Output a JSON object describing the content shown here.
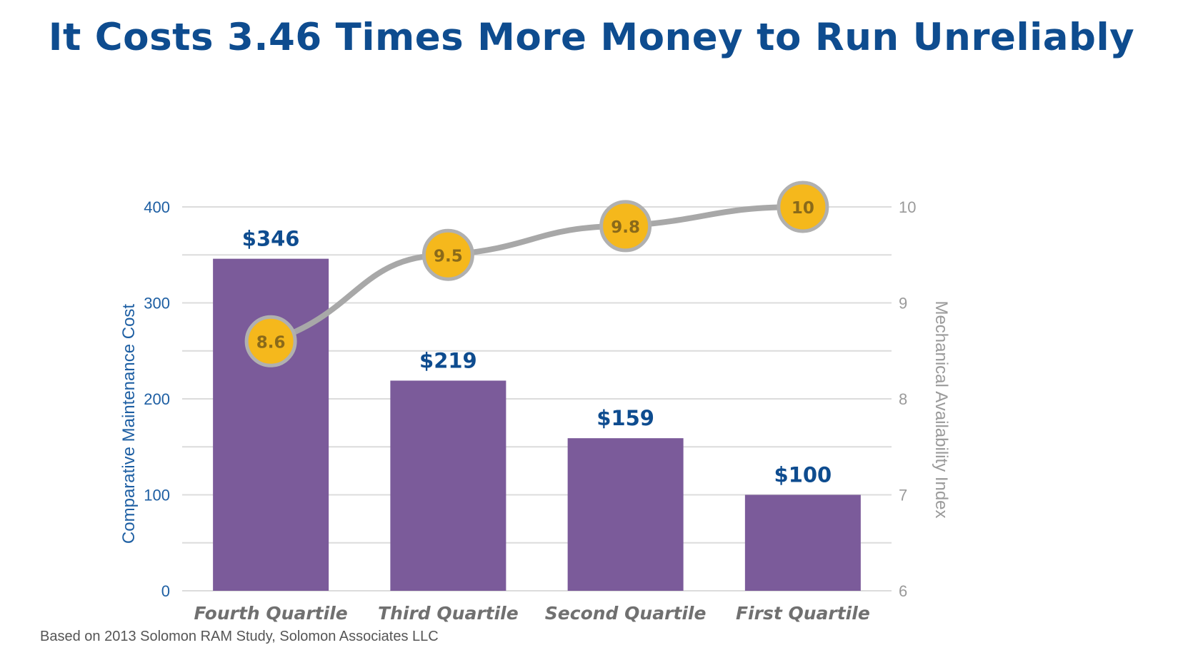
{
  "title": "It Costs 3.46 Times More Money to Run Unreliably",
  "source": "Based on 2013 Solomon RAM Study, Solomon Associates LLC",
  "colors": {
    "title": "#0e4c8f",
    "bar": "#7b5b9a",
    "value_label": "#0e4c8f",
    "left_axis": "#1e5fa3",
    "right_axis": "#9a9a9a",
    "category_label": "#707070",
    "line": "#a8a8a8",
    "marker": "#f5b81c",
    "marker_text": "#8a6a1a",
    "grid": "#dcdcdc"
  },
  "chart_data": {
    "type": "bar",
    "categories": [
      "Fourth Quartile",
      "Third Quartile",
      "Second Quartile",
      "First Quartile"
    ],
    "series": [
      {
        "axis": "left",
        "type": "bar",
        "values": [
          346,
          219,
          159,
          100
        ],
        "value_labels": [
          "$346",
          "$219",
          "$159",
          "$100"
        ]
      },
      {
        "axis": "right",
        "type": "line",
        "values": [
          8.6,
          9.5,
          9.8,
          10
        ],
        "value_labels": [
          "8.6",
          "9.5",
          "9.8",
          "10"
        ]
      }
    ],
    "ylabel": "Comparative Maintenance Cost",
    "y2label": "Mechanical Availability Index",
    "ylim": [
      0,
      400
    ],
    "y2lim": [
      6,
      10
    ],
    "yticks": [
      "0",
      "100",
      "200",
      "300",
      "400"
    ],
    "y2ticks": [
      "6",
      "7",
      "8",
      "9",
      "10"
    ],
    "grid": true,
    "legend": "none"
  }
}
